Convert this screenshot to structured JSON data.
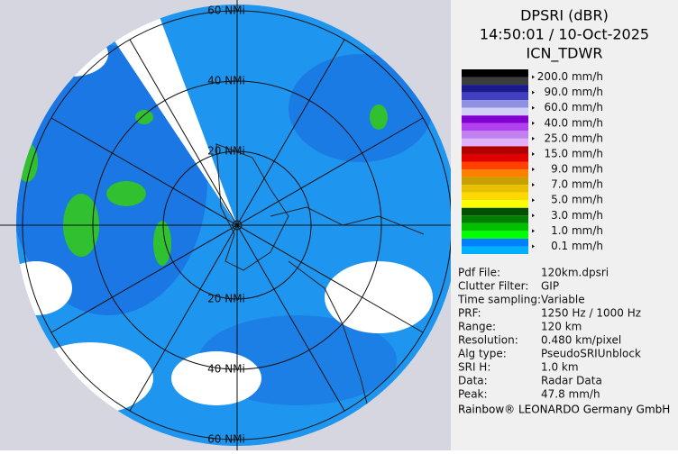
{
  "map": {
    "ring_labels_top": [
      "60 NMi",
      "40 NMi",
      "20 NMi"
    ],
    "ring_labels_bottom": [
      "20 NMi",
      "40 NMi",
      "60 NMi"
    ]
  },
  "header": {
    "title": "DPSRI (dBR)",
    "time": "14:50:01 / 10-Oct-2025",
    "site": "ICN_TDWR"
  },
  "legend": [
    {
      "label": "200.0 mm/h",
      "colors": [
        "#000000",
        "#3c3c3c"
      ]
    },
    {
      "label": "90.0 mm/h",
      "colors": [
        "#1a1a8c",
        "#4040c0"
      ]
    },
    {
      "label": "60.0 mm/h",
      "colors": [
        "#9090e0",
        "#d0d0f8"
      ]
    },
    {
      "label": "40.0 mm/h",
      "colors": [
        "#8000d0",
        "#b040f0"
      ]
    },
    {
      "label": "25.0 mm/h",
      "colors": [
        "#c080f0",
        "#e0b0f8"
      ]
    },
    {
      "label": "15.0 mm/h",
      "colors": [
        "#b00000",
        "#e00000"
      ]
    },
    {
      "label": "9.0 mm/h",
      "colors": [
        "#ff4000",
        "#ff8000"
      ]
    },
    {
      "label": "7.0 mm/h",
      "colors": [
        "#c8a000",
        "#e8c000"
      ]
    },
    {
      "label": "5.0 mm/h",
      "colors": [
        "#ffd800",
        "#ffff00"
      ]
    },
    {
      "label": "3.0 mm/h",
      "colors": [
        "#005000",
        "#008000"
      ]
    },
    {
      "label": "1.0 mm/h",
      "colors": [
        "#00c000",
        "#00ff00"
      ]
    },
    {
      "label": "0.1 mm/h",
      "colors": [
        "#0080ff",
        "#00b0ff"
      ]
    }
  ],
  "info": [
    [
      "Pdf File:",
      "120km.dpsri"
    ],
    [
      "Clutter Filter:",
      "GIP"
    ],
    [
      "Time sampling:",
      "Variable"
    ],
    [
      "PRF:",
      "1250 Hz / 1000 Hz"
    ],
    [
      "Range:",
      "120 km"
    ],
    [
      "Resolution:",
      "0.480 km/pixel"
    ],
    [
      "Alg type:",
      "PseudoSRIUnblock"
    ],
    [
      "SRI H:",
      "1.0 km"
    ],
    [
      "Data:",
      "Radar Data"
    ],
    [
      "Peak:",
      "47.8 mm/h"
    ]
  ],
  "footer": "Rainbow® LEONARDO Germany GmbH"
}
